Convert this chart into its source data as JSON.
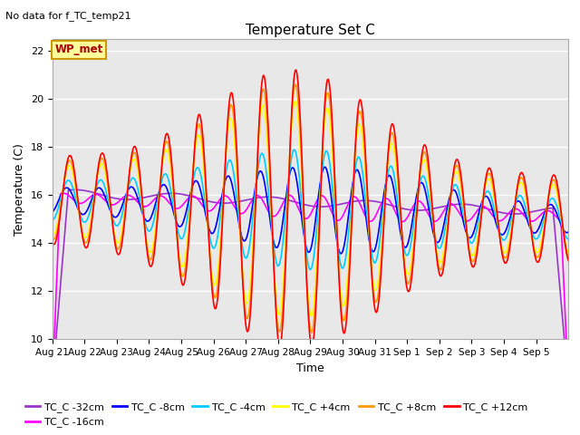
{
  "title": "Temperature Set C",
  "top_left_text": "No data for f_TC_temp21",
  "xlabel": "Time",
  "ylabel": "Temperature (C)",
  "ylim": [
    10,
    22.5
  ],
  "yticks": [
    10,
    12,
    14,
    16,
    18,
    20,
    22
  ],
  "x_tick_labels": [
    "Aug 21",
    "Aug 22",
    "Aug 23",
    "Aug 24",
    "Aug 25",
    "Aug 26",
    "Aug 27",
    "Aug 28",
    "Aug 29",
    "Aug 30",
    "Aug 31",
    "Sep 1",
    "Sep 2",
    "Sep 3",
    "Sep 4",
    "Sep 5"
  ],
  "series": [
    {
      "label": "TC_C -32cm",
      "color": "#9933cc",
      "depth": -32
    },
    {
      "label": "TC_C -16cm",
      "color": "#ff00ff",
      "depth": -16
    },
    {
      "label": "TC_C -8cm",
      "color": "#0000ff",
      "depth": -8
    },
    {
      "label": "TC_C -4cm",
      "color": "#00ccff",
      "depth": -4
    },
    {
      "label": "TC_C +4cm",
      "color": "#ffff00",
      "depth": 4
    },
    {
      "label": "TC_C +8cm",
      "color": "#ff9900",
      "depth": 8
    },
    {
      "label": "TC_C +12cm",
      "color": "#ff0000",
      "depth": 12
    }
  ],
  "wp_met_box_color": "#ffff99",
  "wp_met_text_color": "#aa0000",
  "wp_met_border_color": "#cc9900",
  "background_color": "#e8e8e8",
  "grid_color": "#ffffff",
  "fig_background": "#ffffff"
}
